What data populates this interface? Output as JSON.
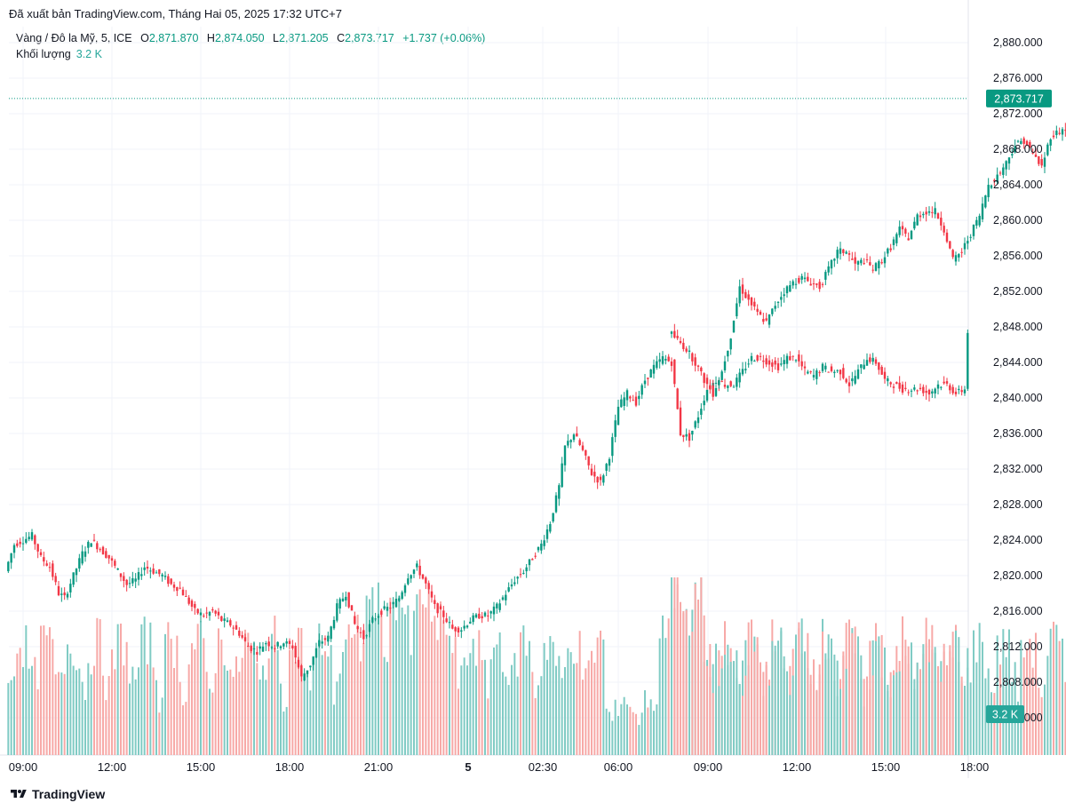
{
  "header": {
    "publisher_line": "Đã xuất bản TradingView.com, Tháng Hai 05, 2025 17:32 UTC+7"
  },
  "legend": {
    "symbol": "Vàng / Đô la Mỹ, 5, ICE",
    "o_label": "O",
    "o_value": "2,871.870",
    "h_label": "H",
    "h_value": "2,874.050",
    "l_label": "L",
    "l_value": "2,871.205",
    "c_label": "C",
    "c_value": "2,873.717",
    "change": "+1.737 (+0.06%)",
    "volume_label": "Khối lượng",
    "volume_value": "3.2 K"
  },
  "price_tag": "2,873.717",
  "volume_tag": "3.2 K",
  "footer": {
    "brand": "TradingView"
  },
  "colors": {
    "up": "#089981",
    "down": "#f23645",
    "vol_up": "#80cbc4",
    "vol_down": "#f7a9a7",
    "tag": "#089981"
  },
  "chart_data": {
    "type": "candlestick",
    "title": "Vàng / Đô la Mỹ, 5, ICE",
    "y_ticks": [
      "2,880.000",
      "2,876.000",
      "2,872.000",
      "2,868.000",
      "2,864.000",
      "2,860.000",
      "2,856.000",
      "2,852.000",
      "2,848.000",
      "2,844.000",
      "2,840.000",
      "2,836.000",
      "2,832.000",
      "2,828.000",
      "2,824.000",
      "2,820.000",
      "2,816.000",
      "2,812.000",
      "2,808.000",
      "2,804.000"
    ],
    "y_range": [
      2804,
      2880
    ],
    "x_ticks": [
      "09:00",
      "12:00",
      "15:00",
      "18:00",
      "21:00",
      "5",
      "02:30",
      "06:00",
      "09:00",
      "12:00",
      "15:00",
      "18:00"
    ],
    "x_range_hours": [
      0,
      32.4
    ],
    "last_price": 2873.717,
    "grid": true,
    "price_series": [
      [
        0.0,
        2820.5
      ],
      [
        0.3,
        2823.5
      ],
      [
        0.6,
        2824.0
      ],
      [
        0.9,
        2824.5
      ],
      [
        1.2,
        2822.0
      ],
      [
        1.5,
        2821.0
      ],
      [
        1.8,
        2818.0
      ],
      [
        2.0,
        2817.5
      ],
      [
        2.3,
        2820.0
      ],
      [
        2.6,
        2822.5
      ],
      [
        2.9,
        2824.0
      ],
      [
        3.2,
        2823.0
      ],
      [
        3.5,
        2822.0
      ],
      [
        3.8,
        2820.5
      ],
      [
        4.1,
        2819.0
      ],
      [
        4.4,
        2819.5
      ],
      [
        4.7,
        2821.0
      ],
      [
        5.0,
        2820.5
      ],
      [
        5.3,
        2820.0
      ],
      [
        5.6,
        2819.0
      ],
      [
        5.9,
        2818.5
      ],
      [
        6.1,
        2817.5
      ],
      [
        6.4,
        2816.0
      ],
      [
        6.7,
        2815.5
      ],
      [
        7.0,
        2816.0
      ],
      [
        7.3,
        2815.0
      ],
      [
        7.6,
        2814.5
      ],
      [
        7.9,
        2813.5
      ],
      [
        8.2,
        2812.0
      ],
      [
        8.5,
        2811.5
      ],
      [
        8.8,
        2812.5
      ],
      [
        9.1,
        2812.0
      ],
      [
        9.4,
        2812.5
      ],
      [
        9.7,
        2812.0
      ],
      [
        10.0,
        2808.5
      ],
      [
        10.3,
        2810.0
      ],
      [
        10.6,
        2812.5
      ],
      [
        10.9,
        2813.0
      ],
      [
        11.2,
        2816.5
      ],
      [
        11.5,
        2818.0
      ],
      [
        11.8,
        2814.5
      ],
      [
        12.1,
        2813.0
      ],
      [
        12.4,
        2815.0
      ],
      [
        12.7,
        2816.0
      ],
      [
        13.0,
        2816.5
      ],
      [
        13.3,
        2817.5
      ],
      [
        13.6,
        2820.0
      ],
      [
        13.9,
        2821.0
      ],
      [
        14.2,
        2819.0
      ],
      [
        14.5,
        2816.5
      ],
      [
        14.8,
        2815.5
      ],
      [
        15.1,
        2814.0
      ],
      [
        15.4,
        2814.0
      ],
      [
        15.7,
        2815.0
      ],
      [
        16.0,
        2815.5
      ],
      [
        16.3,
        2815.5
      ],
      [
        16.6,
        2816.5
      ],
      [
        16.9,
        2818.0
      ],
      [
        17.2,
        2819.5
      ],
      [
        17.5,
        2820.5
      ],
      [
        17.8,
        2822.0
      ],
      [
        18.1,
        2823.5
      ],
      [
        18.4,
        2826.0
      ],
      [
        18.7,
        2830.0
      ],
      [
        18.9,
        2834.5
      ],
      [
        19.2,
        2836.0
      ],
      [
        19.5,
        2834.0
      ],
      [
        19.8,
        2831.5
      ],
      [
        20.1,
        2830.5
      ],
      [
        20.4,
        2833.5
      ],
      [
        20.7,
        2839.0
      ],
      [
        21.0,
        2840.5
      ],
      [
        21.3,
        2839.5
      ],
      [
        21.6,
        2842.0
      ],
      [
        21.9,
        2843.5
      ],
      [
        22.2,
        2844.5
      ],
      [
        22.5,
        2844.0
      ],
      [
        22.8,
        2836.0
      ],
      [
        23.1,
        2835.5
      ],
      [
        23.4,
        2838.0
      ],
      [
        23.7,
        2841.0
      ],
      [
        24.0,
        2842.0
      ],
      [
        24.3,
        2841.5
      ],
      [
        24.6,
        2841.5
      ],
      [
        24.9,
        2843.0
      ],
      [
        25.2,
        2844.5
      ],
      [
        25.5,
        2844.5
      ],
      [
        25.8,
        2844.0
      ],
      [
        26.1,
        2843.5
      ],
      [
        26.4,
        2844.5
      ],
      [
        26.7,
        2844.5
      ],
      [
        27.0,
        2843.0
      ],
      [
        27.3,
        2842.5
      ],
      [
        27.6,
        2843.5
      ],
      [
        27.9,
        2843.0
      ],
      [
        28.2,
        2843.0
      ],
      [
        28.5,
        2841.5
      ],
      [
        28.8,
        2843.0
      ],
      [
        29.1,
        2844.5
      ],
      [
        29.4,
        2844.0
      ],
      [
        29.7,
        2842.0
      ],
      [
        30.0,
        2841.5
      ],
      [
        30.3,
        2841.0
      ],
      [
        30.6,
        2841.0
      ],
      [
        30.9,
        2841.0
      ],
      [
        31.2,
        2840.5
      ],
      [
        31.5,
        2841.5
      ],
      [
        31.8,
        2841.5
      ],
      [
        32.1,
        2840.5
      ],
      [
        32.4,
        2841.0
      ]
    ],
    "price_series_day2": [
      [
        0.0,
        2841.0
      ],
      [
        0.3,
        2847.5
      ],
      [
        0.6,
        2846.5
      ],
      [
        0.9,
        2845.5
      ],
      [
        1.2,
        2844.0
      ],
      [
        1.5,
        2842.0
      ],
      [
        1.8,
        2840.5
      ],
      [
        2.1,
        2843.0
      ],
      [
        2.4,
        2847.0
      ],
      [
        2.7,
        2852.5
      ],
      [
        3.0,
        2851.0
      ],
      [
        3.3,
        2849.5
      ],
      [
        3.6,
        2848.5
      ],
      [
        3.9,
        2850.5
      ],
      [
        4.2,
        2852.0
      ],
      [
        4.5,
        2853.0
      ],
      [
        4.8,
        2853.5
      ],
      [
        5.1,
        2853.0
      ],
      [
        5.4,
        2852.5
      ],
      [
        5.7,
        2854.5
      ],
      [
        6.0,
        2856.5
      ],
      [
        6.3,
        2856.5
      ],
      [
        6.6,
        2855.0
      ],
      [
        6.9,
        2855.5
      ],
      [
        7.2,
        2854.5
      ],
      [
        7.5,
        2855.5
      ],
      [
        7.8,
        2857.0
      ],
      [
        8.1,
        2859.0
      ],
      [
        8.4,
        2858.0
      ],
      [
        8.7,
        2860.5
      ],
      [
        9.0,
        2861.0
      ],
      [
        9.3,
        2861.0
      ],
      [
        9.6,
        2859.0
      ],
      [
        9.9,
        2855.5
      ],
      [
        10.2,
        2856.5
      ],
      [
        10.5,
        2858.5
      ],
      [
        10.8,
        2860.5
      ],
      [
        11.1,
        2864.0
      ],
      [
        11.4,
        2865.0
      ],
      [
        11.7,
        2866.5
      ],
      [
        12.0,
        2868.5
      ],
      [
        12.3,
        2869.0
      ],
      [
        12.6,
        2867.5
      ],
      [
        12.9,
        2866.0
      ],
      [
        13.2,
        2869.5
      ],
      [
        13.5,
        2870.0
      ],
      [
        13.8,
        2870.5
      ],
      [
        14.1,
        2870.0
      ],
      [
        14.4,
        2871.0
      ],
      [
        14.7,
        2873.7
      ]
    ]
  }
}
